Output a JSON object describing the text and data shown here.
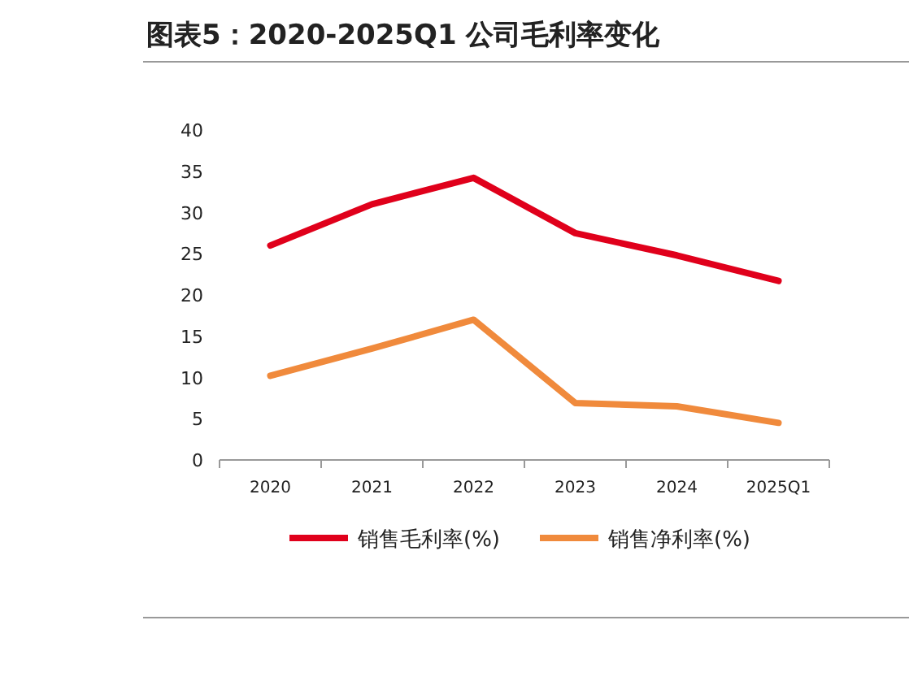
{
  "chart_data": {
    "type": "line",
    "title": "图表5：2020-2025Q1 公司毛利率变化",
    "categories": [
      "2020",
      "2021",
      "2022",
      "2023",
      "2024",
      "2025Q1"
    ],
    "series": [
      {
        "name": "销售毛利率(%)",
        "color": "#e0001b",
        "values": [
          26,
          31,
          34.2,
          27.5,
          24.8,
          21.7
        ]
      },
      {
        "name": "销售净利率(%)",
        "color": "#f08a3c",
        "values": [
          10.2,
          13.5,
          17,
          6.9,
          6.5,
          4.5
        ]
      }
    ],
    "ylim": [
      0,
      40
    ],
    "yticks": [
      0,
      5,
      10,
      15,
      20,
      25,
      30,
      35,
      40
    ],
    "legend": "bottom",
    "grid": false,
    "marker": "none",
    "line_style": "solid"
  }
}
